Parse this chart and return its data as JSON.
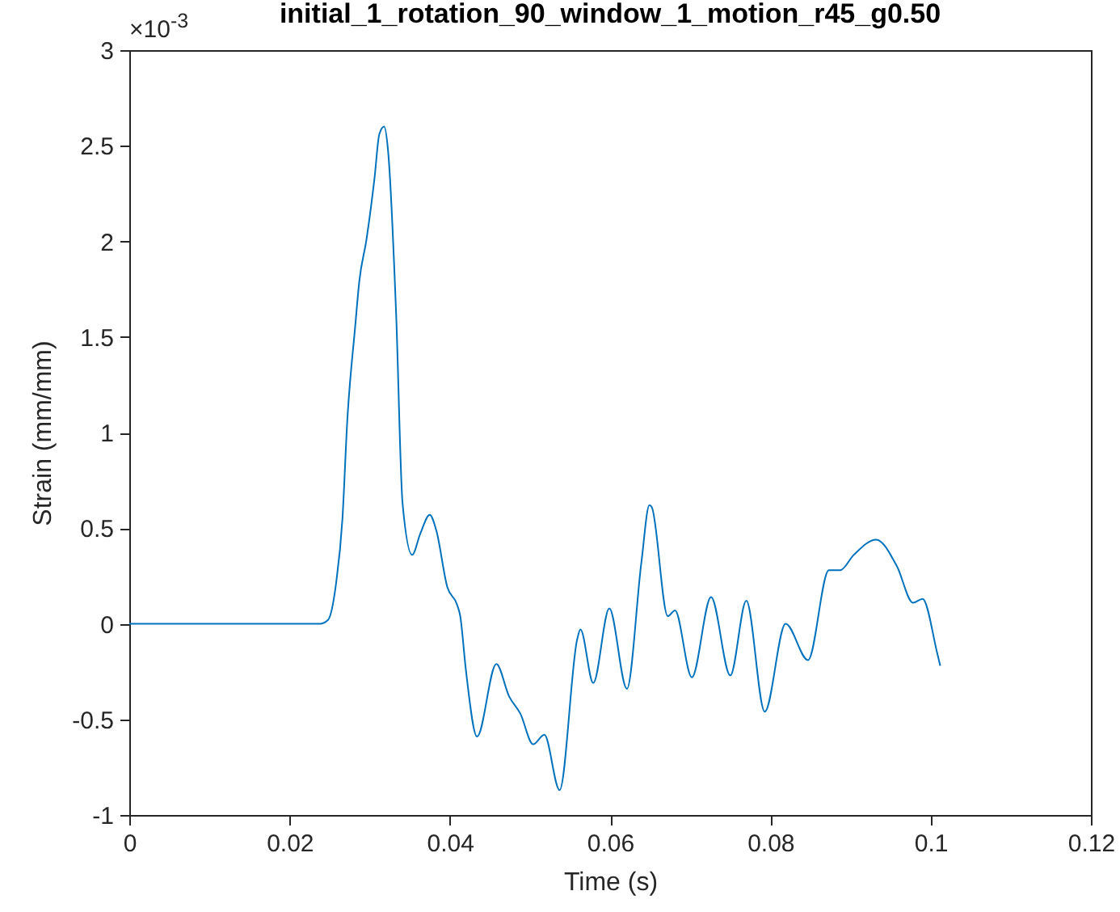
{
  "chart_data": {
    "type": "line",
    "title": "initial_1_rotation_90_window_1_motion_r45_g0.50",
    "xlabel": "Time (s)",
    "ylabel": "Strain (mm/mm)",
    "annotations": [
      "×10$^{-3}$"
    ],
    "xlim": [
      0,
      0.12
    ],
    "xticks": [
      0,
      0.02,
      0.04,
      0.06,
      0.08,
      0.1,
      0.12
    ],
    "ylim": [
      -1,
      3
    ],
    "yticks": [
      -1,
      -0.5,
      0,
      0.5,
      1,
      1.5,
      2,
      2.5,
      3
    ],
    "grid": false,
    "legend": false,
    "series": [
      {
        "color": "#0072bd",
        "x": [
          0,
          0.0238,
          0.0248,
          0.0258,
          0.0266,
          0.0272,
          0.0282,
          0.0287,
          0.0296,
          0.0306,
          0.0312,
          0.0318,
          0.0323,
          0.0333,
          0.0341,
          0.0353,
          0.0363,
          0.0375,
          0.0383,
          0.0397,
          0.0409,
          0.0413,
          0.042,
          0.0434,
          0.0458,
          0.0474,
          0.0488,
          0.0504,
          0.0518,
          0.0537,
          0.0559,
          0.0563,
          0.0579,
          0.0599,
          0.0621,
          0.0639,
          0.0649,
          0.0652,
          0.0672,
          0.0681,
          0.0702,
          0.0726,
          0.075,
          0.077,
          0.0793,
          0.0819,
          0.0847,
          0.0873,
          0.0887,
          0.0904,
          0.0932,
          0.0958,
          0.0978,
          0.099,
          0.1008,
          0.1012
        ],
        "values": [
          0,
          0,
          0.02,
          0.21,
          0.55,
          1.06,
          1.56,
          1.79,
          2.01,
          2.33,
          2.56,
          2.6,
          2.47,
          1.62,
          0.63,
          0.36,
          0.47,
          0.57,
          0.49,
          0.19,
          0.1,
          0.04,
          -0.24,
          -0.59,
          -0.21,
          -0.38,
          -0.47,
          -0.63,
          -0.58,
          -0.87,
          -0.08,
          -0.03,
          -0.31,
          0.08,
          -0.34,
          0.32,
          0.62,
          0.61,
          0.04,
          0.07,
          -0.28,
          0.14,
          -0.27,
          0.12,
          -0.46,
          0,
          -0.19,
          0.28,
          0.28,
          0.36,
          0.44,
          0.3,
          0.11,
          0.13,
          -0.15,
          -0.22
        ]
      }
    ]
  }
}
